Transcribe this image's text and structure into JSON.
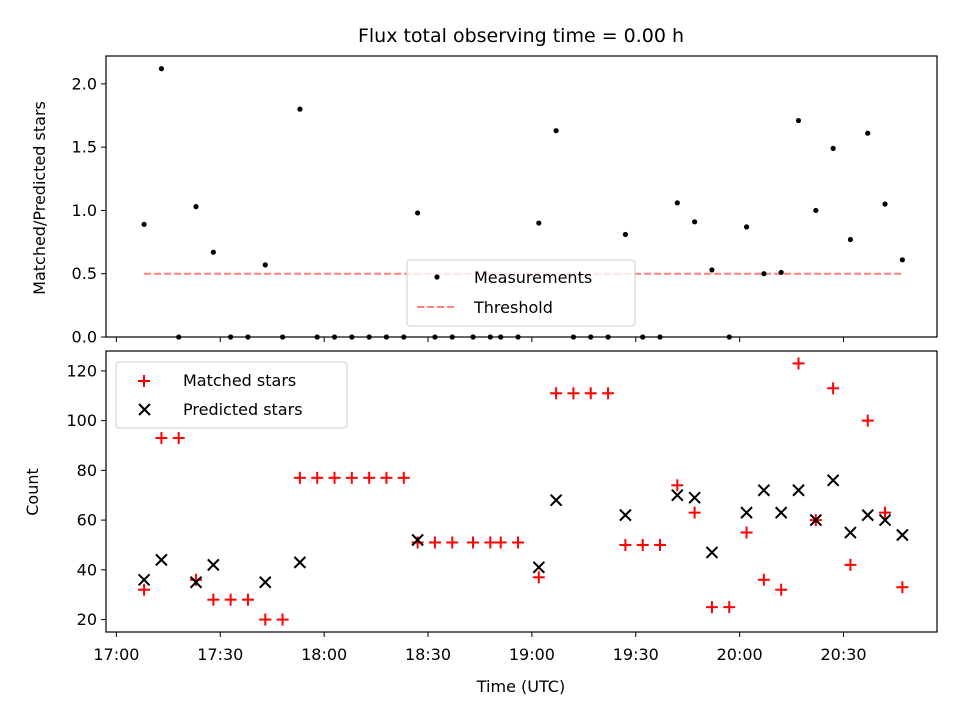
{
  "chart_data": [
    {
      "type": "scatter",
      "title": "Flux total observing time = 0.00 h",
      "ylabel": "Matched/Predicted stars",
      "ylim": [
        0,
        2.22
      ],
      "yticks": [
        "0.0",
        "0.5",
        "1.0",
        "1.5",
        "2.0"
      ],
      "ytick_values": [
        0,
        0.5,
        1.0,
        1.5,
        2.0
      ],
      "grid": false,
      "legend_position": "lower-center",
      "series": [
        {
          "name": "Measurements",
          "color": "#000000",
          "marker": "dot",
          "points": [
            [
              "17:08",
              0.89
            ],
            [
              "17:13",
              2.12
            ],
            [
              "17:18",
              0
            ],
            [
              "17:23",
              1.03
            ],
            [
              "17:28",
              0.67
            ],
            [
              "17:33",
              0
            ],
            [
              "17:38",
              0
            ],
            [
              "17:43",
              0.57
            ],
            [
              "17:48",
              0
            ],
            [
              "17:53",
              1.8
            ],
            [
              "17:58",
              0
            ],
            [
              "18:03",
              0
            ],
            [
              "18:08",
              0
            ],
            [
              "18:13",
              0
            ],
            [
              "18:18",
              0
            ],
            [
              "18:23",
              0
            ],
            [
              "18:27",
              0.98
            ],
            [
              "18:32",
              0
            ],
            [
              "18:37",
              0
            ],
            [
              "18:43",
              0
            ],
            [
              "18:48",
              0
            ],
            [
              "18:51",
              0
            ],
            [
              "18:56",
              0
            ],
            [
              "19:02",
              0.9
            ],
            [
              "19:07",
              1.63
            ],
            [
              "19:12",
              0
            ],
            [
              "19:17",
              0
            ],
            [
              "19:22",
              0
            ],
            [
              "19:27",
              0.81
            ],
            [
              "19:32",
              0
            ],
            [
              "19:37",
              0
            ],
            [
              "19:42",
              1.06
            ],
            [
              "19:47",
              0.91
            ],
            [
              "19:52",
              0.53
            ],
            [
              "19:57",
              0
            ],
            [
              "20:02",
              0.87
            ],
            [
              "20:07",
              0.5
            ],
            [
              "20:12",
              0.51
            ],
            [
              "20:17",
              1.71
            ],
            [
              "20:22",
              1.0
            ],
            [
              "20:27",
              1.49
            ],
            [
              "20:32",
              0.77
            ],
            [
              "20:37",
              1.61
            ],
            [
              "20:42",
              1.05
            ],
            [
              "20:47",
              0.61
            ]
          ]
        },
        {
          "name": "Threshold",
          "color": "#ff8080",
          "style": "dashed",
          "x": [
            "17:08",
            "20:47"
          ],
          "y": [
            0.5,
            0.5
          ]
        }
      ]
    },
    {
      "type": "scatter",
      "xlabel": "Time (UTC)",
      "ylabel": "Count",
      "ylim": [
        15,
        128
      ],
      "yticks": [
        "20",
        "40",
        "60",
        "80",
        "100",
        "120"
      ],
      "ytick_values": [
        20,
        40,
        60,
        80,
        100,
        120
      ],
      "xticks": [
        "17:00",
        "17:30",
        "18:00",
        "18:30",
        "19:00",
        "19:30",
        "20:00",
        "20:30"
      ],
      "xlim": [
        "16:57",
        "20:57"
      ],
      "grid": false,
      "legend_position": "upper-left",
      "series": [
        {
          "name": "Matched stars",
          "color": "#ff0000",
          "marker": "plus",
          "points": [
            [
              "17:08",
              32
            ],
            [
              "17:13",
              93
            ],
            [
              "17:18",
              93
            ],
            [
              "17:23",
              36
            ],
            [
              "17:28",
              28
            ],
            [
              "17:33",
              28
            ],
            [
              "17:38",
              28
            ],
            [
              "17:43",
              20
            ],
            [
              "17:48",
              20
            ],
            [
              "17:53",
              77
            ],
            [
              "17:58",
              77
            ],
            [
              "18:03",
              77
            ],
            [
              "18:08",
              77
            ],
            [
              "18:13",
              77
            ],
            [
              "18:18",
              77
            ],
            [
              "18:23",
              77
            ],
            [
              "18:27",
              51
            ],
            [
              "18:32",
              51
            ],
            [
              "18:37",
              51
            ],
            [
              "18:43",
              51
            ],
            [
              "18:48",
              51
            ],
            [
              "18:51",
              51
            ],
            [
              "18:56",
              51
            ],
            [
              "19:02",
              37
            ],
            [
              "19:07",
              111
            ],
            [
              "19:12",
              111
            ],
            [
              "19:17",
              111
            ],
            [
              "19:22",
              111
            ],
            [
              "19:27",
              50
            ],
            [
              "19:32",
              50
            ],
            [
              "19:37",
              50
            ],
            [
              "19:42",
              74
            ],
            [
              "19:47",
              63
            ],
            [
              "19:52",
              25
            ],
            [
              "19:57",
              25
            ],
            [
              "20:02",
              55
            ],
            [
              "20:07",
              36
            ],
            [
              "20:12",
              32
            ],
            [
              "20:17",
              123
            ],
            [
              "20:22",
              60
            ],
            [
              "20:27",
              113
            ],
            [
              "20:32",
              42
            ],
            [
              "20:37",
              100
            ],
            [
              "20:42",
              63
            ],
            [
              "20:47",
              33
            ]
          ]
        },
        {
          "name": "Predicted stars",
          "color": "#000000",
          "marker": "x",
          "points": [
            [
              "17:08",
              36
            ],
            [
              "17:13",
              44
            ],
            [
              "17:23",
              35
            ],
            [
              "17:28",
              42
            ],
            [
              "17:43",
              35
            ],
            [
              "17:53",
              43
            ],
            [
              "18:27",
              52
            ],
            [
              "19:02",
              41
            ],
            [
              "19:07",
              68
            ],
            [
              "19:27",
              62
            ],
            [
              "19:42",
              70
            ],
            [
              "19:47",
              69
            ],
            [
              "19:52",
              47
            ],
            [
              "20:02",
              63
            ],
            [
              "20:07",
              72
            ],
            [
              "20:12",
              63
            ],
            [
              "20:17",
              72
            ],
            [
              "20:22",
              60
            ],
            [
              "20:27",
              76
            ],
            [
              "20:32",
              55
            ],
            [
              "20:37",
              62
            ],
            [
              "20:42",
              60
            ],
            [
              "20:47",
              54
            ]
          ]
        }
      ]
    }
  ]
}
